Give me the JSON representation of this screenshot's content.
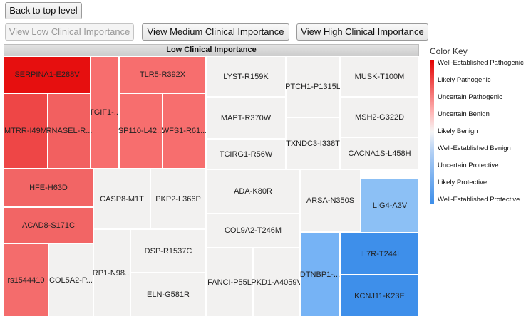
{
  "buttons": {
    "back": "Back to top level",
    "low": "View Low Clinical Importance",
    "medium": "View Medium Clinical Importance",
    "high": "View High Clinical Importance"
  },
  "treemap_title": "Low Clinical Importance",
  "cells": [
    {
      "label": "SERPINA1-E288V",
      "color": "#e60f0f"
    },
    {
      "label": "TGIF1-...",
      "color": "#f76e6e"
    },
    {
      "label": "TLR5-R392X",
      "color": "#f76e6e"
    },
    {
      "label": "MTRR-I49M",
      "color": "#ee4646"
    },
    {
      "label": "RNASEL-R...",
      "color": "#f26060"
    },
    {
      "label": "SP110-L42...",
      "color": "#f76e6e"
    },
    {
      "label": "WFS1-R61...",
      "color": "#f76e6e"
    },
    {
      "label": "LYST-R159K",
      "color": "#f2f1f0"
    },
    {
      "label": "PTCH1-P1315L",
      "color": "#f2f1f0"
    },
    {
      "label": "MUSK-T100M",
      "color": "#f2f1f0"
    },
    {
      "label": "MAPT-R370W",
      "color": "#f2f1f0"
    },
    {
      "label": "MSH2-G322D",
      "color": "#f2f1f0"
    },
    {
      "label": "TXNDC3-I338T",
      "color": "#f2f1f0"
    },
    {
      "label": "TCIRG1-R56W",
      "color": "#f2f1f0"
    },
    {
      "label": "CACNA1S-L458H",
      "color": "#f2f1f0"
    },
    {
      "label": "HFE-H63D",
      "color": "#f26565"
    },
    {
      "label": "ACAD8-S171C",
      "color": "#f26565"
    },
    {
      "label": "CASP8-M1T",
      "color": "#f2f1f0"
    },
    {
      "label": "PKP2-L366P",
      "color": "#f2f1f0"
    },
    {
      "label": "ADA-K80R",
      "color": "#f2f1f0"
    },
    {
      "label": "ARSA-N350S",
      "color": "#f2f1f0"
    },
    {
      "label": "LIG4-A3V",
      "color": "#8cc0f5"
    },
    {
      "label": "COL9A2-T246M",
      "color": "#f2f1f0"
    },
    {
      "label": "DSP-R1537C",
      "color": "#f2f1f0"
    },
    {
      "label": "rs1544410",
      "color": "#f46c6c"
    },
    {
      "label": "COL5A2-P...",
      "color": "#f2f1f0"
    },
    {
      "label": "RP1-N98...",
      "color": "#f2f1f0"
    },
    {
      "label": "ELN-G581R",
      "color": "#f2f1f0"
    },
    {
      "label": "FANCI-P55L",
      "color": "#f2f1f0"
    },
    {
      "label": "PKD1-A4059V",
      "color": "#f2f1f0"
    },
    {
      "label": "DTNBP1-...",
      "color": "#76b3f5"
    },
    {
      "label": "IL7R-T244I",
      "color": "#3e8fea"
    },
    {
      "label": "KCNJ11-K23E",
      "color": "#3e8fea"
    }
  ],
  "legend": {
    "title": "Color Key",
    "items": [
      "Well-Established Pathogenic",
      "Likely Pathogenic",
      "Uncertain Pathogenic",
      "Uncertain Benign",
      "Likely Benign",
      "Well-Established Benign",
      "Uncertain Protective",
      "Likely Protective",
      "Well-Established Protective"
    ]
  }
}
